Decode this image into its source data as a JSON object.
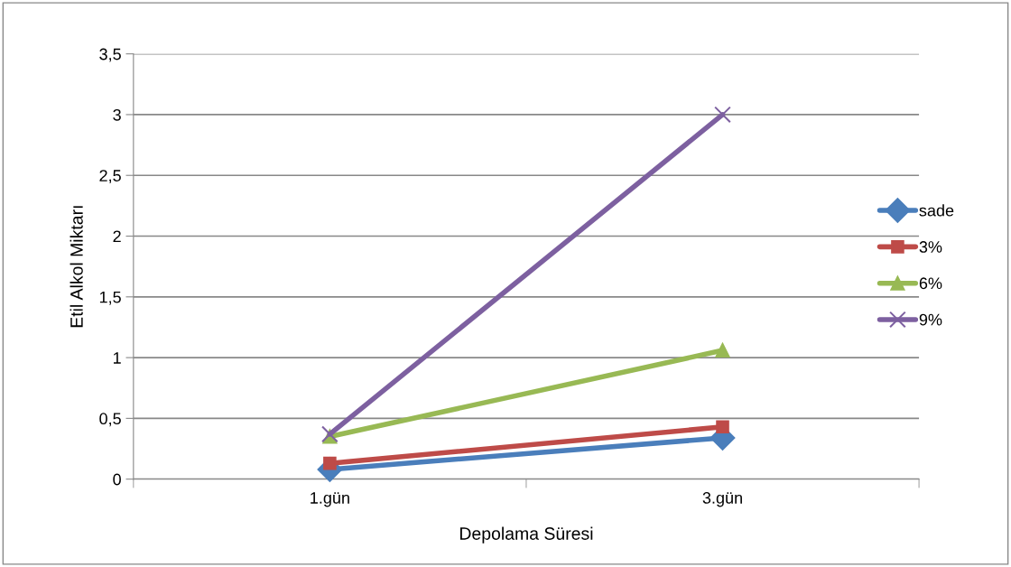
{
  "chart_data": {
    "type": "line",
    "xlabel": "Depolama Süresi",
    "ylabel": "Etil Alkol Miktarı",
    "categories": [
      "1.gün",
      "3.gün"
    ],
    "series": [
      {
        "name": "sade",
        "color": "#4a7ebb",
        "marker": "diamond",
        "values": [
          0.08,
          0.34
        ]
      },
      {
        "name": "3%",
        "color": "#be4b48",
        "marker": "square",
        "values": [
          0.13,
          0.43
        ]
      },
      {
        "name": "6%",
        "color": "#98b954",
        "marker": "triangle",
        "values": [
          0.35,
          1.06
        ]
      },
      {
        "name": "9%",
        "color": "#7d60a0",
        "marker": "cross",
        "values": [
          0.37,
          3.0
        ]
      }
    ],
    "ylim": [
      0,
      3.5
    ],
    "yticks": [
      {
        "value": 0,
        "label": "0"
      },
      {
        "value": 0.5,
        "label": "0,5"
      },
      {
        "value": 1,
        "label": "1"
      },
      {
        "value": 1.5,
        "label": "1,5"
      },
      {
        "value": 2,
        "label": "2"
      },
      {
        "value": 2.5,
        "label": "2,5"
      },
      {
        "value": 3,
        "label": "3"
      },
      {
        "value": 3.5,
        "label": "3,5"
      }
    ],
    "grid": "y",
    "legend": "right",
    "line_style": "solid"
  }
}
